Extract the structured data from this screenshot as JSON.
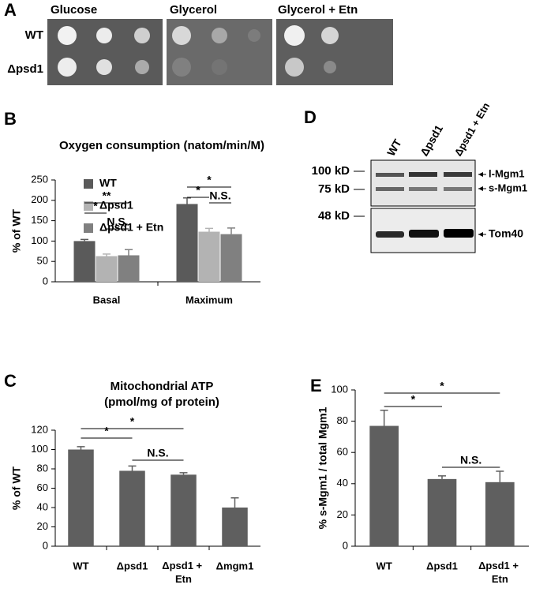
{
  "panel_labels": [
    "A",
    "B",
    "C",
    "D",
    "E"
  ],
  "plates": {
    "columns": [
      "Glucose",
      "Glycerol",
      "Glycerol + Etn"
    ],
    "rows": [
      "WT",
      "Δpsd1"
    ]
  },
  "blot": {
    "lanes": [
      "WT",
      "Δpsd1",
      "Δpsd1 + Etn"
    ],
    "markers": [
      "100 kD",
      "75 kD",
      "48 kD"
    ],
    "bands": [
      "l-Mgm1",
      "s-Mgm1",
      "Tom40"
    ]
  },
  "chart_data": [
    {
      "type": "bar",
      "title": "Oxygen consumption (natom/min/M)",
      "ylabel": "% of WT",
      "categories": [
        "Basal",
        "Maximum"
      ],
      "series": [
        {
          "name": "WT",
          "color": "#5a5a5a",
          "values": [
            100,
            191
          ],
          "errors": [
            4,
            15
          ]
        },
        {
          "name": "Δpsd1",
          "color": "#b3b3b3",
          "values": [
            63,
            123
          ],
          "errors": [
            5,
            8
          ]
        },
        {
          "name": "Δpsd1 + Etn",
          "color": "#808080",
          "values": [
            65,
            117
          ],
          "errors": [
            14,
            15
          ]
        }
      ],
      "ylim": [
        0,
        250
      ],
      "yticks": [
        0,
        50,
        100,
        150,
        200,
        250
      ],
      "annotations": [
        "*",
        "**",
        "N.S.",
        "*",
        "*",
        "N.S."
      ]
    },
    {
      "type": "bar",
      "title": "Mitochondrial ATP",
      "subtitle": "(pmol/mg of protein)",
      "ylabel": "% of WT",
      "categories": [
        "WT",
        "Δpsd1",
        "Δpsd1 + Etn",
        "Δmgm1"
      ],
      "color": "#5f5f5f",
      "values": [
        100,
        78,
        74,
        40
      ],
      "errors": [
        3,
        5,
        2,
        10
      ],
      "ylim": [
        0,
        120
      ],
      "yticks": [
        0,
        20,
        40,
        60,
        80,
        100,
        120
      ],
      "annotations": [
        "*",
        "*",
        "N.S."
      ]
    },
    {
      "type": "bar",
      "ylabel": "% s-Mgm1 / total Mgm1",
      "categories": [
        "WT",
        "Δpsd1",
        "Δpsd1 + Etn"
      ],
      "color": "#5f5f5f",
      "values": [
        77,
        43,
        41
      ],
      "errors": [
        10,
        2,
        7
      ],
      "ylim": [
        0,
        100
      ],
      "yticks": [
        0,
        20,
        40,
        60,
        80,
        100
      ],
      "annotations": [
        "*",
        "*",
        "N.S."
      ]
    }
  ]
}
